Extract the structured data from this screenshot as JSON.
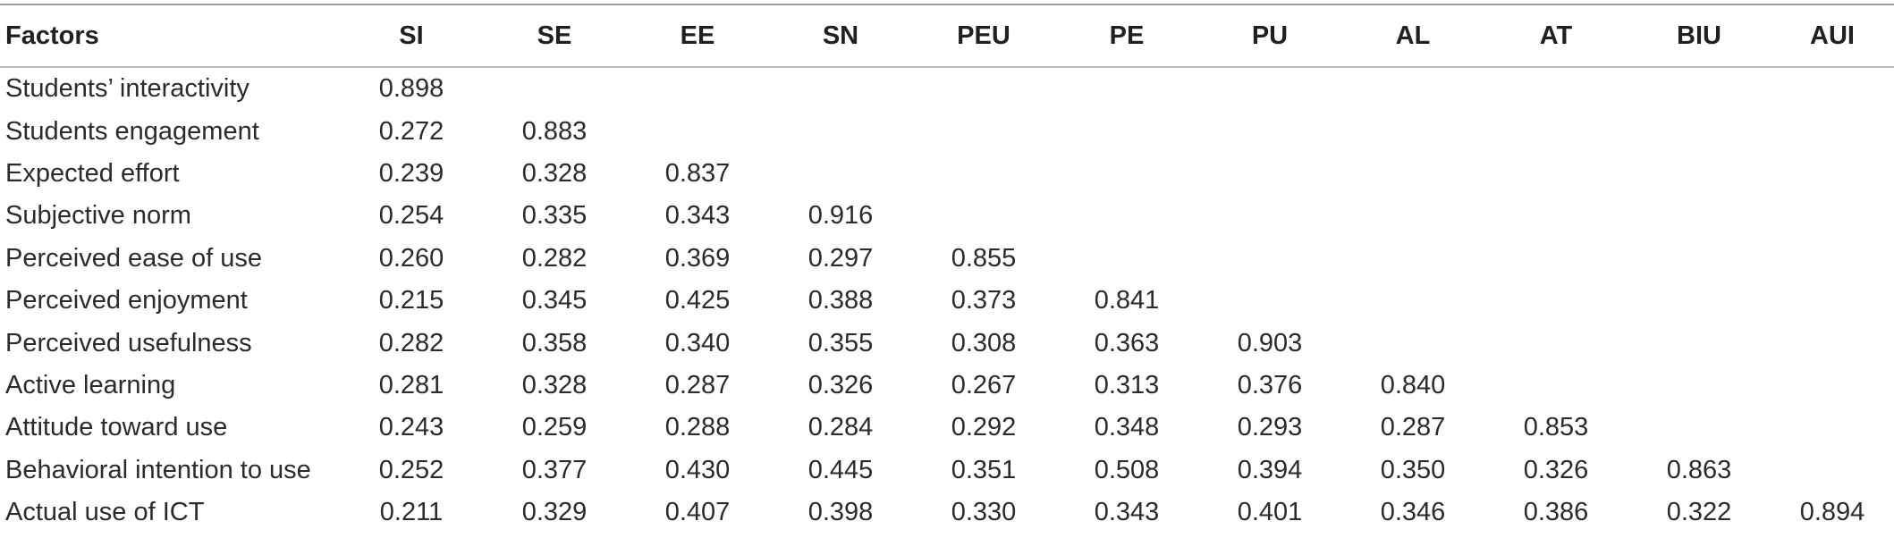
{
  "table": {
    "headers": [
      "Factors",
      "SI",
      "SE",
      "EE",
      "SN",
      "PEU",
      "PE",
      "PU",
      "AL",
      "AT",
      "BIU",
      "AUI"
    ],
    "rows": [
      {
        "label": "Students’ interactivity",
        "values": [
          "0.898",
          "",
          "",
          "",
          "",
          "",
          "",
          "",
          "",
          "",
          ""
        ]
      },
      {
        "label": "Students engagement",
        "values": [
          "0.272",
          "0.883",
          "",
          "",
          "",
          "",
          "",
          "",
          "",
          "",
          ""
        ]
      },
      {
        "label": "Expected effort",
        "values": [
          "0.239",
          "0.328",
          "0.837",
          "",
          "",
          "",
          "",
          "",
          "",
          "",
          ""
        ]
      },
      {
        "label": "Subjective norm",
        "values": [
          "0.254",
          "0.335",
          "0.343",
          "0.916",
          "",
          "",
          "",
          "",
          "",
          "",
          ""
        ]
      },
      {
        "label": "Perceived ease of use",
        "values": [
          "0.260",
          "0.282",
          "0.369",
          "0.297",
          "0.855",
          "",
          "",
          "",
          "",
          "",
          ""
        ]
      },
      {
        "label": "Perceived enjoyment",
        "values": [
          "0.215",
          "0.345",
          "0.425",
          "0.388",
          "0.373",
          "0.841",
          "",
          "",
          "",
          "",
          ""
        ]
      },
      {
        "label": "Perceived usefulness",
        "values": [
          "0.282",
          "0.358",
          "0.340",
          "0.355",
          "0.308",
          "0.363",
          "0.903",
          "",
          "",
          "",
          ""
        ]
      },
      {
        "label": "Active learning",
        "values": [
          "0.281",
          "0.328",
          "0.287",
          "0.326",
          "0.267",
          "0.313",
          "0.376",
          "0.840",
          "",
          "",
          ""
        ]
      },
      {
        "label": "Attitude toward use",
        "values": [
          "0.243",
          "0.259",
          "0.288",
          "0.284",
          "0.292",
          "0.348",
          "0.293",
          "0.287",
          "0.853",
          "",
          ""
        ]
      },
      {
        "label": "Behavioral intention to use",
        "values": [
          "0.252",
          "0.377",
          "0.430",
          "0.445",
          "0.351",
          "0.508",
          "0.394",
          "0.350",
          "0.326",
          "0.863",
          ""
        ]
      },
      {
        "label": "Actual use of ICT",
        "values": [
          "0.211",
          "0.329",
          "0.407",
          "0.398",
          "0.330",
          "0.343",
          "0.401",
          "0.346",
          "0.386",
          "0.322",
          "0.894"
        ]
      }
    ]
  }
}
